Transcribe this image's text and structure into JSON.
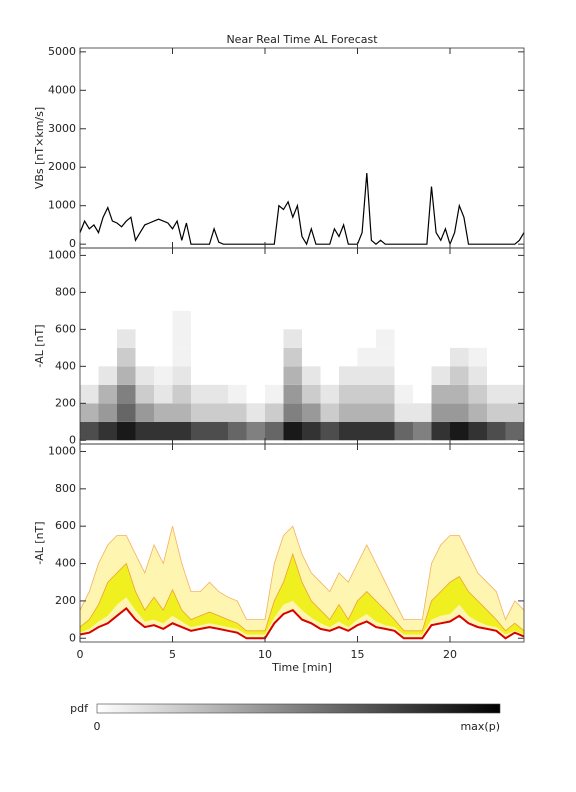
{
  "chart_data": [
    {
      "type": "line",
      "title": "Near Real Time AL Forecast",
      "ylabel": "VBs [nT×km/s]",
      "color": "#000000",
      "xlim": [
        0,
        24
      ],
      "ylim": [
        -100,
        5100
      ],
      "yticks": [
        0,
        1000,
        2000,
        3000,
        4000,
        5000
      ],
      "x": [
        0,
        0.25,
        0.5,
        0.75,
        1,
        1.25,
        1.5,
        1.75,
        2,
        2.25,
        2.5,
        2.75,
        3,
        3.25,
        3.5,
        3.75,
        4,
        4.25,
        4.5,
        4.75,
        5,
        5.25,
        5.5,
        5.75,
        6,
        6.25,
        6.5,
        6.75,
        7,
        7.25,
        7.5,
        7.75,
        8,
        8.25,
        8.5,
        8.75,
        9,
        9.25,
        9.5,
        9.75,
        10,
        10.25,
        10.5,
        10.75,
        11,
        11.25,
        11.5,
        11.75,
        12,
        12.25,
        12.5,
        12.75,
        13,
        13.25,
        13.5,
        13.75,
        14,
        14.25,
        14.5,
        14.75,
        15,
        15.25,
        15.5,
        15.75,
        16,
        16.25,
        16.5,
        16.75,
        17,
        17.25,
        17.5,
        17.75,
        18,
        18.25,
        18.5,
        18.75,
        19,
        19.25,
        19.5,
        19.75,
        20,
        20.25,
        20.5,
        20.75,
        21,
        21.25,
        21.5,
        21.75,
        22,
        22.25,
        22.5,
        22.75,
        23,
        23.25,
        23.5,
        23.75,
        24
      ],
      "values": [
        300,
        600,
        400,
        500,
        300,
        700,
        950,
        600,
        550,
        450,
        600,
        700,
        100,
        300,
        500,
        550,
        600,
        650,
        600,
        550,
        400,
        600,
        100,
        550,
        0,
        0,
        0,
        0,
        0,
        400,
        50,
        0,
        0,
        0,
        0,
        0,
        0,
        0,
        0,
        0,
        0,
        0,
        0,
        1000,
        900,
        1100,
        700,
        1000,
        200,
        0,
        400,
        0,
        0,
        0,
        0,
        400,
        200,
        500,
        0,
        0,
        0,
        300,
        1850,
        100,
        0,
        100,
        0,
        0,
        0,
        0,
        0,
        0,
        0,
        0,
        0,
        0,
        1500,
        300,
        100,
        400,
        0,
        300,
        1000,
        700,
        0,
        0,
        0,
        0,
        0,
        0,
        0,
        0,
        0,
        0,
        0,
        100,
        300
      ]
    },
    {
      "type": "heatmap",
      "ylabel": "-AL [nT]",
      "xlim": [
        0,
        24
      ],
      "ylim": [
        -20,
        1040
      ],
      "yticks": [
        0,
        200,
        400,
        600,
        800,
        1000
      ],
      "xbins": [
        0,
        1,
        2,
        3,
        4,
        5,
        6,
        7,
        8,
        9,
        10,
        11,
        12,
        13,
        14,
        15,
        16,
        17,
        18,
        19,
        20,
        21,
        22,
        23,
        24
      ],
      "ybins": [
        0,
        100,
        200,
        300,
        400,
        500,
        600,
        700
      ],
      "pdf": [
        [
          0.7,
          0.3,
          0.1,
          0,
          0,
          0,
          0
        ],
        [
          0.8,
          0.4,
          0.3,
          0.1,
          0,
          0,
          0
        ],
        [
          0.9,
          0.6,
          0.5,
          0.3,
          0.2,
          0.1,
          0
        ],
        [
          0.8,
          0.4,
          0.2,
          0.1,
          0,
          0,
          0
        ],
        [
          0.8,
          0.3,
          0.1,
          0.05,
          0,
          0,
          0
        ],
        [
          0.8,
          0.3,
          0.2,
          0.1,
          0.05,
          0.05,
          0.05
        ],
        [
          0.7,
          0.2,
          0.1,
          0,
          0,
          0,
          0
        ],
        [
          0.7,
          0.2,
          0.1,
          0,
          0,
          0,
          0
        ],
        [
          0.6,
          0.2,
          0.05,
          0,
          0,
          0,
          0
        ],
        [
          0.5,
          0.1,
          0,
          0,
          0,
          0,
          0
        ],
        [
          0.6,
          0.2,
          0.05,
          0,
          0,
          0,
          0
        ],
        [
          0.9,
          0.5,
          0.4,
          0.3,
          0.2,
          0.1,
          0
        ],
        [
          0.8,
          0.4,
          0.2,
          0.1,
          0,
          0,
          0
        ],
        [
          0.7,
          0.2,
          0.1,
          0,
          0,
          0,
          0
        ],
        [
          0.8,
          0.3,
          0.2,
          0.1,
          0,
          0,
          0
        ],
        [
          0.8,
          0.3,
          0.2,
          0.1,
          0.05,
          0,
          0
        ],
        [
          0.8,
          0.3,
          0.2,
          0.1,
          0.05,
          0.05,
          0
        ],
        [
          0.6,
          0.1,
          0.05,
          0,
          0,
          0,
          0
        ],
        [
          0.5,
          0.1,
          0,
          0,
          0,
          0,
          0
        ],
        [
          0.8,
          0.4,
          0.3,
          0.1,
          0,
          0,
          0
        ],
        [
          0.9,
          0.4,
          0.3,
          0.2,
          0.1,
          0,
          0
        ],
        [
          0.8,
          0.3,
          0.2,
          0.1,
          0.05,
          0,
          0
        ],
        [
          0.7,
          0.2,
          0.1,
          0,
          0,
          0,
          0
        ],
        [
          0.6,
          0.2,
          0.1,
          0,
          0,
          0,
          0
        ]
      ],
      "colorbar": {
        "label": "pdf",
        "min_label": "0",
        "max_label": "max(p)"
      }
    },
    {
      "type": "band",
      "ylabel": "-AL [nT]",
      "xlabel": "Time [min]",
      "xlim": [
        0,
        24
      ],
      "ylim": [
        -20,
        1040
      ],
      "xticks": [
        0,
        5,
        10,
        15,
        20
      ],
      "yticks": [
        0,
        200,
        400,
        600,
        800,
        1000
      ],
      "x": [
        0,
        0.5,
        1,
        1.5,
        2,
        2.5,
        3,
        3.5,
        4,
        4.5,
        5,
        5.5,
        6,
        6.5,
        7,
        7.5,
        8,
        8.5,
        9,
        9.5,
        10,
        10.5,
        11,
        11.5,
        12,
        12.5,
        13,
        13.5,
        14,
        14.5,
        15,
        15.5,
        16,
        16.5,
        17,
        17.5,
        18,
        18.5,
        19,
        19.5,
        20,
        20.5,
        21,
        21.5,
        22,
        22.5,
        23,
        23.5,
        24
      ],
      "series": [
        {
          "color": "#d90000",
          "values": [
            20,
            30,
            60,
            80,
            120,
            160,
            100,
            60,
            70,
            50,
            80,
            60,
            40,
            50,
            60,
            50,
            40,
            30,
            0,
            0,
            0,
            80,
            130,
            150,
            100,
            80,
            50,
            40,
            60,
            40,
            70,
            90,
            60,
            50,
            40,
            0,
            0,
            0,
            70,
            80,
            90,
            120,
            80,
            60,
            50,
            40,
            0,
            30,
            10
          ]
        },
        {
          "color": "#f0f020",
          "values": [
            30,
            50,
            90,
            120,
            180,
            220,
            150,
            90,
            100,
            80,
            120,
            90,
            60,
            70,
            80,
            70,
            60,
            50,
            20,
            20,
            20,
            110,
            180,
            200,
            150,
            110,
            80,
            60,
            90,
            60,
            100,
            130,
            90,
            70,
            60,
            20,
            20,
            20,
            100,
            120,
            130,
            180,
            120,
            90,
            70,
            60,
            20,
            40,
            20
          ]
        },
        {
          "color": "#f0a030",
          "values": [
            60,
            100,
            180,
            300,
            350,
            400,
            250,
            150,
            220,
            150,
            260,
            150,
            100,
            120,
            140,
            120,
            100,
            80,
            40,
            40,
            40,
            200,
            300,
            450,
            300,
            200,
            150,
            100,
            180,
            100,
            200,
            250,
            200,
            150,
            100,
            40,
            40,
            40,
            200,
            250,
            300,
            330,
            250,
            200,
            150,
            100,
            40,
            80,
            40
          ]
        },
        {
          "color": "#f5b060",
          "values": [
            150,
            250,
            400,
            500,
            550,
            550,
            450,
            350,
            500,
            400,
            600,
            400,
            250,
            250,
            300,
            250,
            220,
            200,
            100,
            100,
            100,
            400,
            550,
            600,
            450,
            350,
            300,
            250,
            350,
            300,
            400,
            500,
            400,
            300,
            200,
            100,
            100,
            100,
            400,
            500,
            550,
            550,
            450,
            350,
            300,
            250,
            100,
            200,
            150
          ]
        }
      ]
    }
  ]
}
